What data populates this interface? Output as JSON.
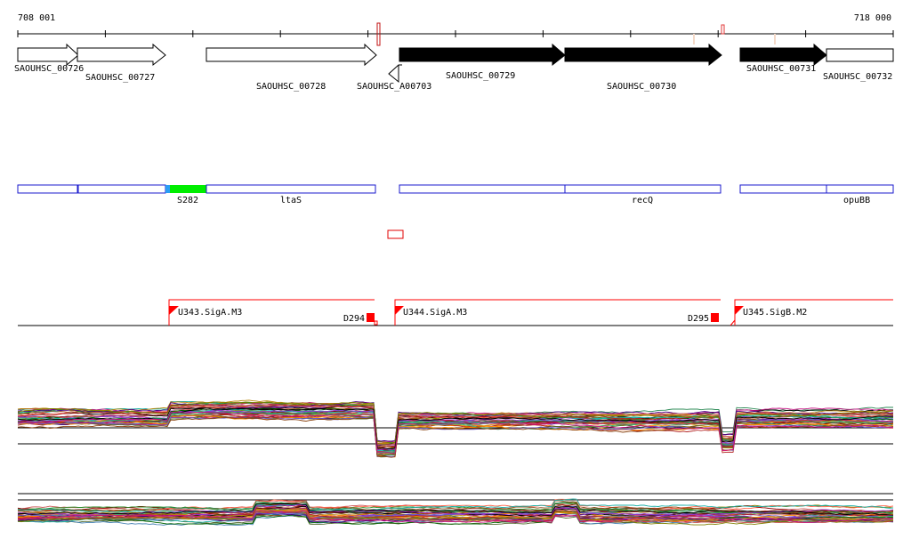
{
  "ruler": {
    "start_label": "708 001",
    "end_label": "718 000"
  },
  "colors": {
    "gene_fill_forward": "#ffffff",
    "gene_fill_highlight": "#000000",
    "feature_outline": "#1a1acd",
    "feature_highlight": "#00ee00",
    "feature_highlight_edge": "#2a9df4",
    "transcription": "#ff0000",
    "baseline": "#000000"
  },
  "genes": [
    {
      "id": "SAOUHSC_00726",
      "strand": "+",
      "style": "open"
    },
    {
      "id": "SAOUHSC_00727",
      "strand": "+",
      "style": "open"
    },
    {
      "id": "SAOUHSC_00728",
      "strand": "+",
      "style": "open"
    },
    {
      "id": "SAOUHSC_A00703",
      "strand": "-",
      "style": "open"
    },
    {
      "id": "SAOUHSC_00729",
      "strand": "+",
      "style": "filled"
    },
    {
      "id": "SAOUHSC_00730",
      "strand": "+",
      "style": "filled"
    },
    {
      "id": "SAOUHSC_00731",
      "strand": "+",
      "style": "filled"
    },
    {
      "id": "SAOUHSC_00732",
      "strand": "+",
      "style": "open"
    }
  ],
  "features": [
    {
      "label": ""
    },
    {
      "label": "S282",
      "highlighted": true
    },
    {
      "label": "ltaS"
    },
    {
      "label": ""
    },
    {
      "label": "recQ"
    },
    {
      "label": ""
    },
    {
      "label": "opuBB"
    }
  ],
  "transcription_units": [
    {
      "promoter": "U343.SigA.M3",
      "terminator": "D294"
    },
    {
      "promoter": "U344.SigA.M3",
      "terminator": "D295"
    },
    {
      "promoter": "U345.SigB.M2",
      "terminator": ""
    }
  ],
  "expression_tracks": [
    {
      "name": "condition-profiles-upper"
    },
    {
      "name": "condition-profiles-lower"
    }
  ]
}
